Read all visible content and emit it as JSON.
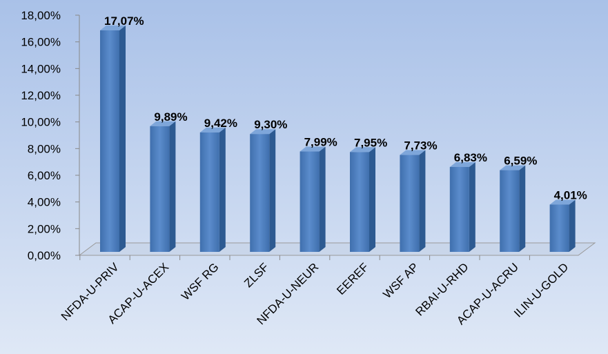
{
  "chart_data": {
    "type": "bar",
    "categories": [
      "NFDA-U-PRIV",
      "ACAP-U-ACEX",
      "WSF RG",
      "ZLSF",
      "NFDA-U-NEUR",
      "EEREF",
      "WSF AP",
      "RBAI-U-RHD",
      "ACAP-U-ACRU",
      "ILIN-U-GOLD"
    ],
    "values": [
      17.07,
      9.89,
      9.42,
      9.3,
      7.99,
      7.95,
      7.73,
      6.83,
      6.59,
      4.01
    ],
    "value_labels": [
      "17,07%",
      "9,89%",
      "9,42%",
      "9,30%",
      "7,99%",
      "7,95%",
      "7,73%",
      "6,83%",
      "6,59%",
      "4,01%"
    ],
    "color": "#4f81bd",
    "ylim": [
      0,
      18
    ],
    "yticks": [
      {
        "value": 0,
        "label": "0,00%"
      },
      {
        "value": 2,
        "label": "2,00%"
      },
      {
        "value": 4,
        "label": "4,00%"
      },
      {
        "value": 6,
        "label": "6,00%"
      },
      {
        "value": 8,
        "label": "8,00%"
      },
      {
        "value": 10,
        "label": "10,00%"
      },
      {
        "value": 12,
        "label": "12,00%"
      },
      {
        "value": 14,
        "label": "14,00%"
      },
      {
        "value": 16,
        "label": "16,00%"
      },
      {
        "value": 18,
        "label": "18,00%"
      }
    ]
  }
}
